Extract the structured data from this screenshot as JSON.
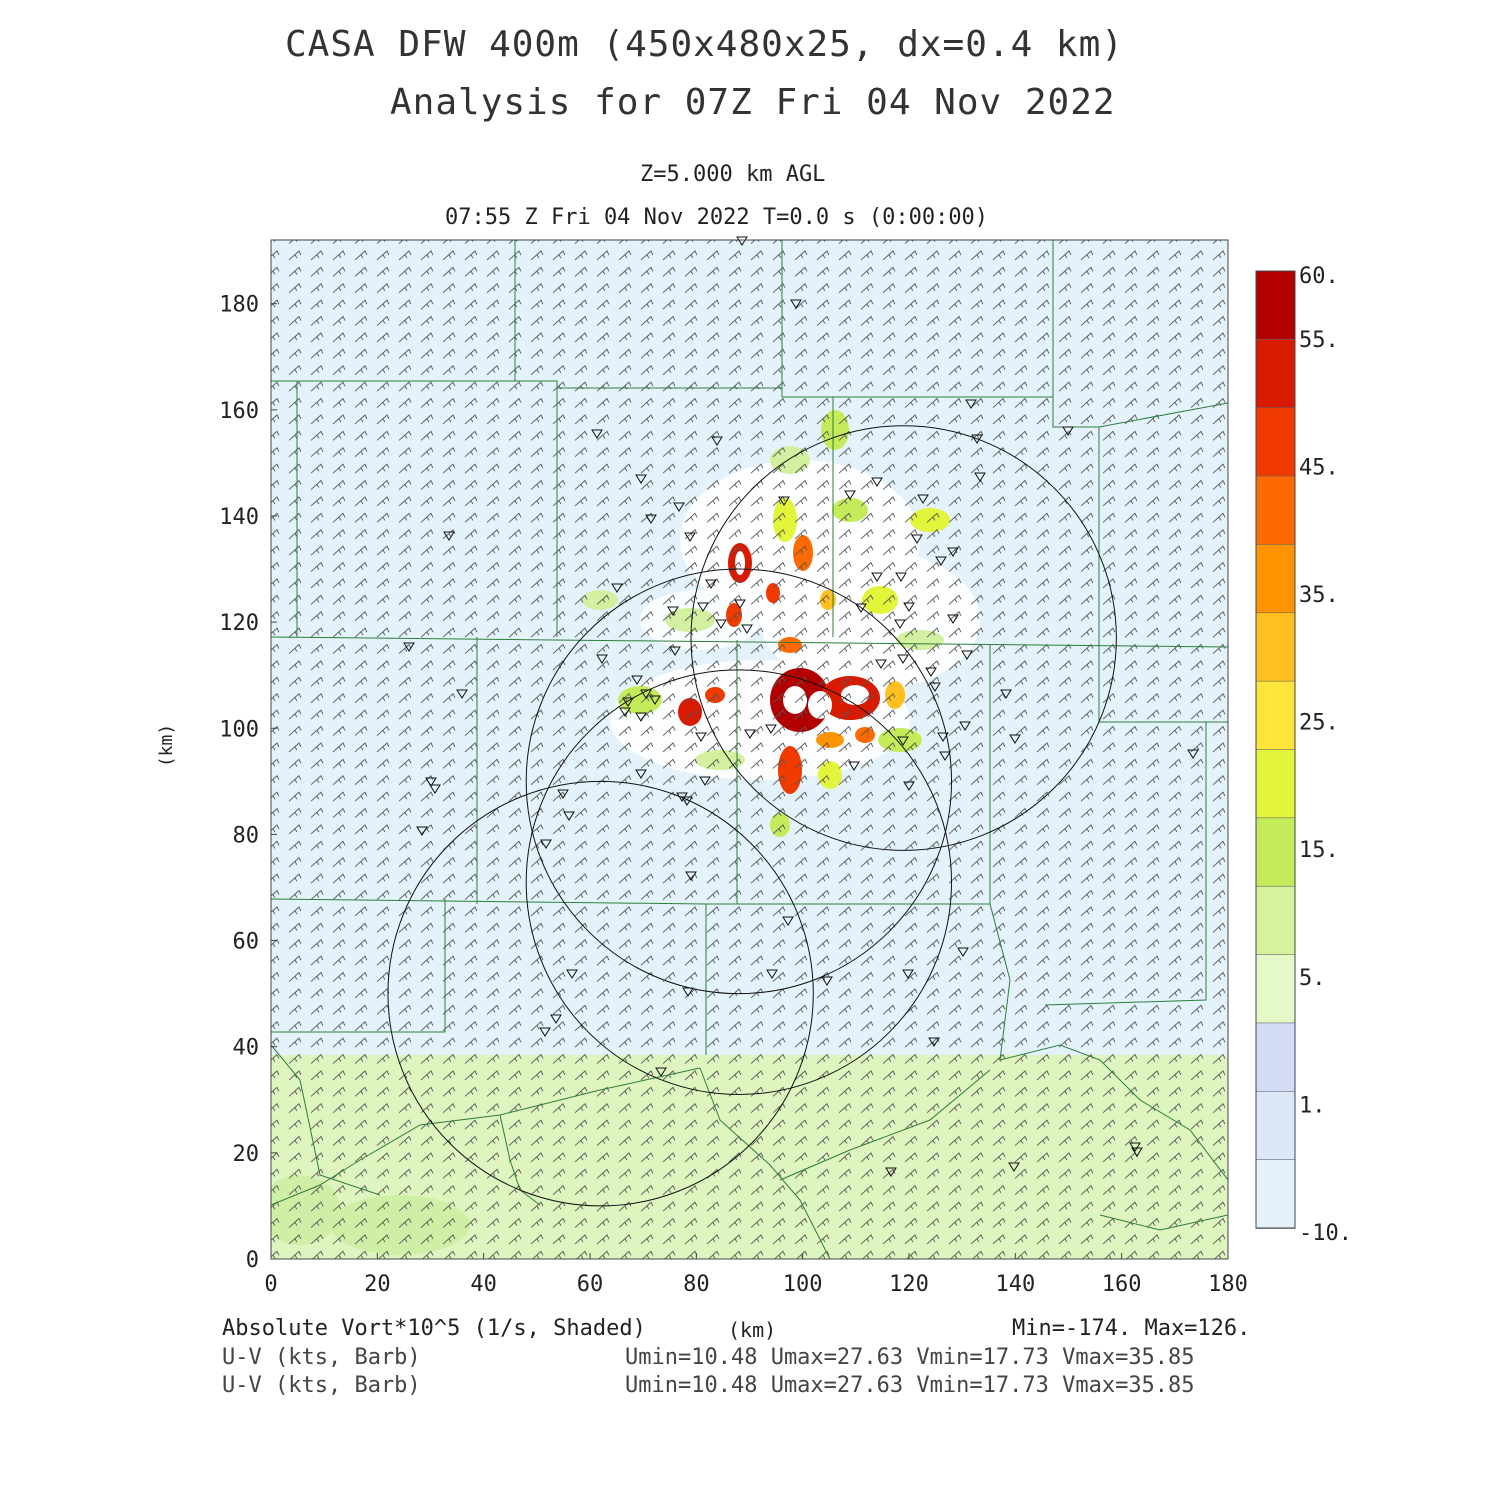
{
  "header": {
    "title_line1": "CASA DFW 400m (450x480x25, dx=0.4 km)",
    "title_line2": "Analysis for 07Z Fri 04 Nov 2022",
    "level": "Z=5.000 km AGL",
    "valid_time": "07:55 Z Fri 04 Nov 2022    T=0.0 s (0:00:00)"
  },
  "axes": {
    "x_unit_label": "(km)",
    "y_unit_label": "(km)",
    "x_ticks": [
      "0",
      "20",
      "40",
      "60",
      "80",
      "100",
      "120",
      "140",
      "160",
      "180"
    ],
    "y_ticks": [
      "0",
      "20",
      "40",
      "60",
      "80",
      "100",
      "120",
      "140",
      "160",
      "180"
    ],
    "x_range": [
      0,
      180
    ],
    "y_range": [
      0,
      192
    ]
  },
  "colorbar": {
    "labels": [
      "60.",
      "55.",
      "45.",
      "35.",
      "25.",
      "15.",
      "5.",
      "1.",
      "-10."
    ],
    "colors": [
      "#b20000",
      "#d81b00",
      "#f03a00",
      "#ff6a00",
      "#ff9400",
      "#ffbf1f",
      "#ffe53a",
      "#e2f53a",
      "#c4ec5a",
      "#d7f29c",
      "#e5f8c8",
      "#d4dcf6",
      "#dce8f7",
      "#e4f2fb"
    ]
  },
  "footer": {
    "field1_label": "Absolute Vort*10^5 (1/s, Shaded)",
    "field1_stats": "Min=-174. Max=126.",
    "field2_label": "U-V (kts, Barb)",
    "field2_stats": "Umin=10.48 Umax=27.63 Vmin=17.73 Vmax=35.85",
    "field3_label": "U-V (kts, Barb)",
    "field3_stats": "Umin=10.48 Umax=27.63 Vmin=17.73 Vmax=35.85"
  },
  "map_features": {
    "radar_range_rings": [
      {
        "center_km": [
          62,
          50
        ],
        "radius_km": 40
      },
      {
        "center_km": [
          88,
          71
        ],
        "radius_km": 40
      },
      {
        "center_km": [
          88,
          90
        ],
        "radius_km": 40
      },
      {
        "center_km": [
          119,
          117
        ],
        "radius_km": 40
      }
    ]
  }
}
